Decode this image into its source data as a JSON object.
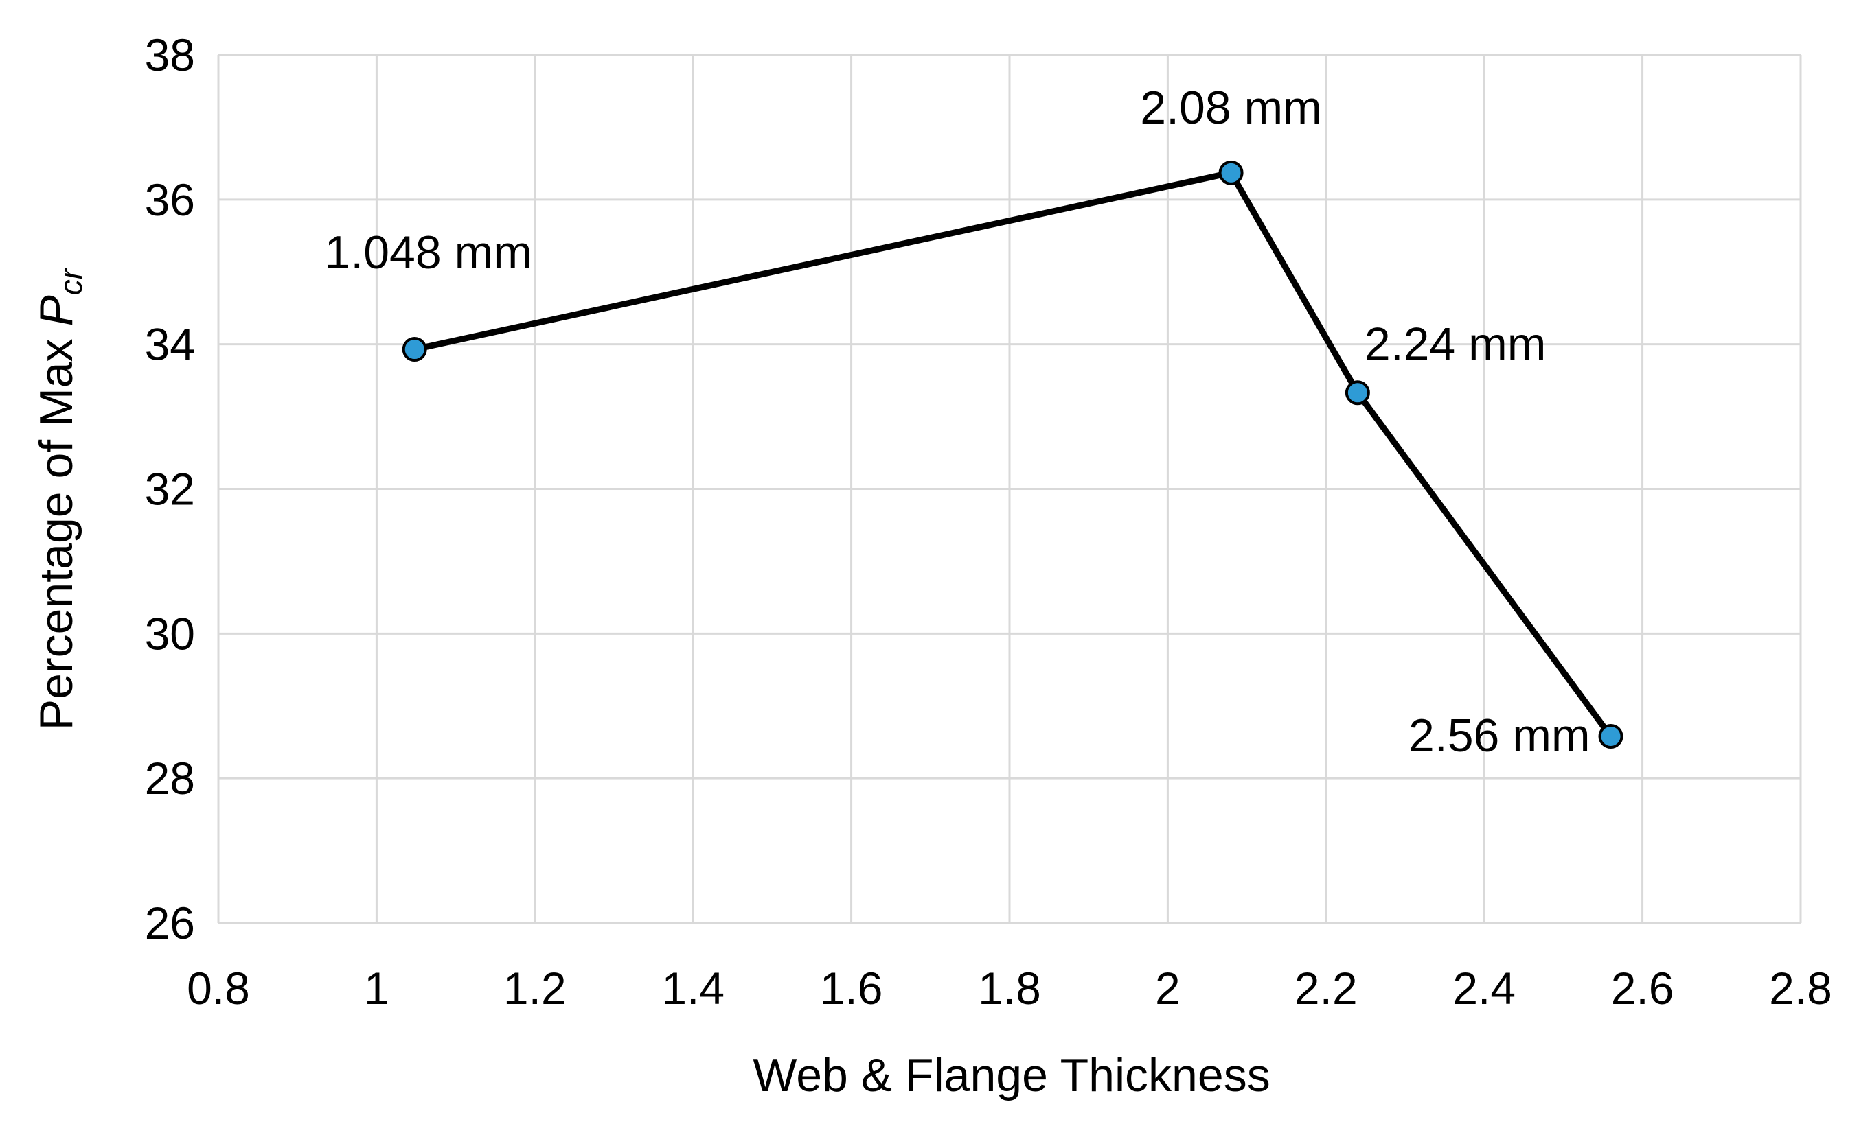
{
  "chart_data": {
    "type": "line",
    "title": "",
    "xlabel": "Web & Flange Thickness",
    "ylabel": "Percentage of Max",
    "ylabel_symbol": "P",
    "ylabel_subscript": "cr",
    "xlim": [
      0.8,
      2.8
    ],
    "ylim": [
      26,
      38
    ],
    "x_ticks": [
      "0.8",
      "1",
      "1.2",
      "1.4",
      "1.6",
      "1.8",
      "2",
      "2.2",
      "2.4",
      "2.6",
      "2.8"
    ],
    "y_ticks": [
      "26",
      "28",
      "30",
      "32",
      "34",
      "36",
      "38"
    ],
    "grid": true,
    "legend": "none",
    "series": [
      {
        "x": [
          1.048,
          2.08,
          2.24,
          2.56
        ],
        "y": [
          33.93,
          36.37,
          33.33,
          28.58
        ],
        "labels": [
          "1.048 mm",
          "2.08 mm",
          "2.24 mm",
          "2.56 mm"
        ],
        "label_positions": [
          "above-left",
          "above",
          "above-right",
          "left"
        ]
      }
    ],
    "colors": {
      "line": "#000000",
      "marker_fill": "#2E9BD6",
      "marker_stroke": "#000000",
      "grid": "#D9D9D9"
    }
  }
}
